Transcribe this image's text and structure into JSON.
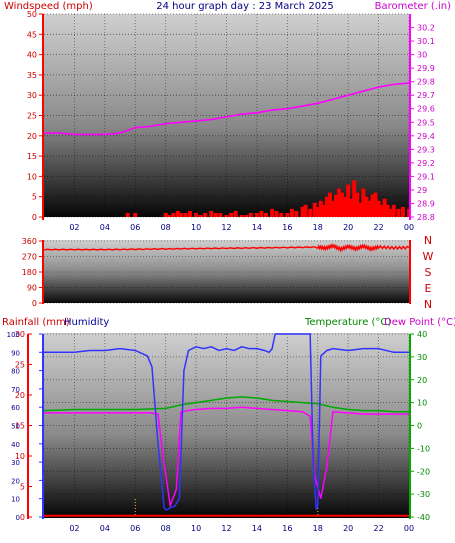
{
  "title": "24 hour graph day : 23 March 2025",
  "colors": {
    "windspeed": "#ff0000",
    "barometer": "#ff00ff",
    "direction": "#ff0000",
    "rainfall": "#ff0000",
    "humidity": "#3333ff",
    "temperature": "#00aa00",
    "dewpoint": "#ff00ff"
  },
  "chart_data": [
    {
      "type": "line",
      "panel": "wind-pressure",
      "xlabel": "",
      "x_ticks": [
        "02",
        "04",
        "06",
        "08",
        "10",
        "12",
        "14",
        "16",
        "18",
        "20",
        "22",
        "00"
      ],
      "left_axis": {
        "label": "Windspeed (mph)",
        "range": [
          0,
          50
        ],
        "ticks": [
          "0",
          "5",
          "10",
          "15",
          "20",
          "25",
          "30",
          "35",
          "40",
          "45",
          "50"
        ]
      },
      "right_axis": {
        "label": "Barometer (.in)",
        "range": [
          28.8,
          30.3
        ],
        "ticks": [
          "28.8",
          "28.9",
          "29",
          "29.1",
          "29.2",
          "29.3",
          "29.4",
          "29.5",
          "29.6",
          "29.7",
          "29.8",
          "29.9",
          "30",
          "30.1",
          "30.2"
        ]
      },
      "series": [
        {
          "name": "Windspeed (mph)",
          "axis": "left",
          "kind": "bars",
          "x": [
            0,
            1,
            2,
            3,
            4,
            4.3,
            4.6,
            5,
            5.2,
            5.5,
            5.8,
            6,
            6.5,
            7,
            7.5,
            8,
            8.2,
            8.5,
            8.8,
            9,
            9.3,
            9.6,
            10,
            10.3,
            10.6,
            11,
            11.3,
            11.6,
            12,
            12.3,
            12.6,
            13,
            13.3,
            13.6,
            14,
            14.3,
            14.6,
            15,
            15.3,
            15.6,
            16,
            16.3,
            16.6,
            17,
            17.2,
            17.5,
            17.8,
            18,
            18.2,
            18.4,
            18.6,
            18.8,
            19,
            19.2,
            19.4,
            19.6,
            19.8,
            20,
            20.2,
            20.4,
            20.6,
            20.8,
            21,
            21.2,
            21.4,
            21.6,
            21.8,
            22,
            22.2,
            22.4,
            22.6,
            22.8,
            23,
            23.3,
            23.6,
            24
          ],
          "values": [
            0,
            0,
            0,
            0,
            0,
            0,
            0,
            0,
            0,
            1,
            0,
            1,
            0,
            0,
            0,
            1,
            0.5,
            1,
            1.5,
            1,
            1,
            1.5,
            1,
            0.5,
            1,
            1.5,
            1,
            1,
            0.5,
            1,
            1.5,
            0.5,
            0.5,
            1,
            1,
            1.5,
            1,
            2,
            1.5,
            1,
            1,
            2,
            1.5,
            2.5,
            3,
            2,
            3.5,
            2.5,
            4,
            3,
            5,
            6,
            4,
            5.5,
            7,
            6,
            5,
            8,
            4.5,
            9,
            6,
            3.5,
            7,
            5,
            4,
            5.5,
            6,
            4,
            3,
            4.5,
            3,
            2,
            3,
            2,
            2.5,
            2
          ]
        },
        {
          "name": "Barometer (.in)",
          "axis": "right",
          "x": [
            0,
            1,
            2,
            3,
            4,
            5,
            6,
            7,
            8,
            9,
            10,
            11,
            12,
            13,
            14,
            15,
            16,
            17,
            18,
            19,
            20,
            21,
            22,
            23,
            24
          ],
          "values": [
            29.42,
            29.42,
            29.41,
            29.41,
            29.41,
            29.42,
            29.46,
            29.47,
            29.49,
            29.5,
            29.51,
            29.52,
            29.54,
            29.56,
            29.57,
            29.59,
            29.6,
            29.62,
            29.64,
            29.67,
            29.7,
            29.73,
            29.76,
            29.78,
            29.79
          ]
        }
      ]
    },
    {
      "type": "line",
      "panel": "wind-direction",
      "left_axis": {
        "range": [
          0,
          360
        ],
        "ticks": [
          "0",
          "90",
          "180",
          "270",
          "360"
        ]
      },
      "right_labels": [
        "N",
        "W",
        "S",
        "E",
        "N"
      ],
      "series": [
        {
          "name": "Wind direction",
          "kind": "noisy",
          "x": [
            0,
            2,
            4,
            6,
            8,
            10,
            12,
            14,
            16,
            18,
            18.5,
            19,
            19.5,
            20,
            20.5,
            21,
            21.5,
            22,
            23,
            24
          ],
          "values": [
            310,
            310,
            310,
            312,
            314,
            316,
            318,
            320,
            322,
            325,
            318,
            332,
            312,
            328,
            315,
            330,
            314,
            325,
            320,
            322
          ]
        }
      ]
    },
    {
      "type": "line",
      "panel": "rain-humidity-temp",
      "x_ticks": [
        "02",
        "04",
        "06",
        "08",
        "10",
        "12",
        "14",
        "16",
        "18",
        "20",
        "22",
        "00"
      ],
      "left_axis_rain": {
        "label": "Rainfall (mm)",
        "range": [
          0,
          30
        ],
        "ticks": [
          "0",
          "5",
          "10",
          "15",
          "20",
          "25",
          "30"
        ]
      },
      "left_axis_humidity": {
        "label": "Humidity",
        "range": [
          0,
          100
        ],
        "ticks": [
          "0",
          "10",
          "20",
          "30",
          "40",
          "50",
          "60",
          "70",
          "80",
          "90",
          "100"
        ]
      },
      "right_axis": {
        "label_temperature": "Temperature (°C)",
        "label_dewpoint": "Dew Point (°C)",
        "range": [
          -40,
          40
        ],
        "ticks": [
          "-40",
          "-30",
          "-20",
          "-10",
          "0",
          "10",
          "20",
          "30",
          "40"
        ]
      },
      "series": [
        {
          "name": "Humidity",
          "axis": "humidity",
          "x": [
            0,
            2,
            3,
            4,
            5,
            6,
            6.8,
            7.1,
            7.5,
            7.9,
            8,
            8.1,
            8.3,
            8.6,
            8.9,
            9.2,
            9.5,
            10,
            10.5,
            11,
            11.5,
            12,
            12.5,
            13,
            13.5,
            14,
            14.5,
            14.8,
            15,
            15.2,
            16,
            17,
            17.4,
            17.5,
            17.7,
            17.9,
            18,
            18.2,
            18.6,
            19,
            20,
            21,
            22,
            23,
            24
          ],
          "values": [
            90,
            90,
            91,
            91,
            92,
            91,
            88,
            82,
            40,
            5,
            4,
            4,
            5,
            6,
            10,
            80,
            91,
            93,
            92,
            93,
            91,
            92,
            91,
            93,
            92,
            92,
            91,
            90,
            92,
            100,
            100,
            100,
            100,
            100,
            30,
            4,
            6,
            88,
            91,
            92,
            91,
            92,
            92,
            90,
            90
          ]
        },
        {
          "name": "Temperature (°C)",
          "axis": "right",
          "x": [
            0,
            2,
            4,
            6,
            8,
            9,
            10,
            11,
            12,
            13,
            14,
            15,
            16,
            17,
            18,
            19,
            20,
            21,
            22,
            23,
            24
          ],
          "values": [
            6.5,
            7,
            7,
            7,
            7.5,
            9,
            10,
            11,
            12,
            12.5,
            12,
            11,
            10.5,
            10,
            9.5,
            8,
            7,
            6.5,
            6.5,
            6,
            6
          ]
        },
        {
          "name": "Dew Point (°C)",
          "axis": "right",
          "x": [
            0,
            2,
            4,
            6,
            7,
            7.5,
            7.8,
            8.3,
            8.7,
            9,
            10,
            11,
            12,
            13,
            14,
            15,
            16,
            17,
            17.5,
            17.8,
            18.2,
            18.6,
            19,
            20,
            21,
            22,
            23,
            24
          ],
          "values": [
            5.5,
            5.5,
            5.5,
            5.5,
            5.5,
            5,
            -12,
            -35,
            -28,
            6,
            7,
            7.5,
            7.5,
            8,
            7.5,
            7,
            6.5,
            6,
            4,
            -22,
            -32,
            -18,
            6,
            5.5,
            5,
            5,
            5,
            5
          ]
        },
        {
          "name": "Rainfall (mm)",
          "axis": "rain",
          "x": [
            0,
            24
          ],
          "values": [
            0.2,
            0.2
          ]
        }
      ]
    }
  ]
}
